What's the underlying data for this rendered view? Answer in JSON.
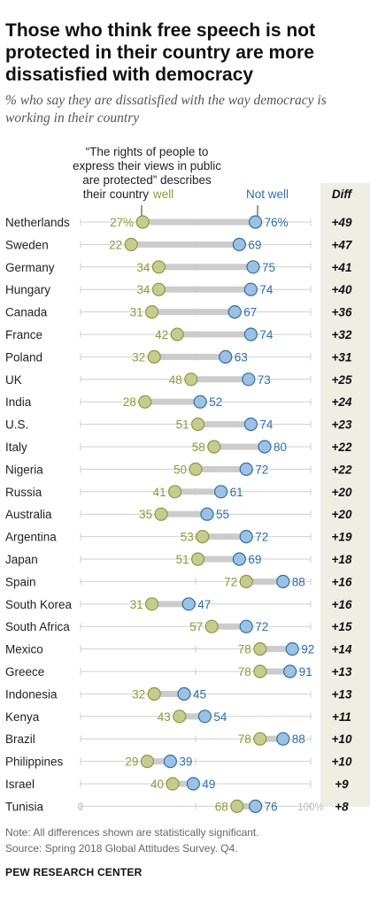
{
  "chart_data": {
    "type": "dot-plot",
    "title": "Those who think free speech is not protected in their country are more dissatisfied with democracy",
    "subtitle": "% who say they are dissatisfied with the way democracy is working in their country",
    "legend_caption": "“The rights of people to express their views in public are protected” describes their country",
    "series": [
      {
        "name": "well",
        "color": "#8c9a3c",
        "fill": "#c5cc92"
      },
      {
        "name": "Not well",
        "color": "#2f6fa6",
        "fill": "#9dc0e3"
      }
    ],
    "diff_header": "Diff",
    "xlim": [
      0,
      100
    ],
    "x_tick_labels": [
      "0",
      "100%"
    ],
    "rows": [
      {
        "country": "Netherlands",
        "well": 27,
        "well_label": "27%",
        "not_well": 76,
        "not_well_label": "76%",
        "diff": "+49"
      },
      {
        "country": "Sweden",
        "well": 22,
        "well_label": "22",
        "not_well": 69,
        "not_well_label": "69",
        "diff": "+47"
      },
      {
        "country": "Germany",
        "well": 34,
        "well_label": "34",
        "not_well": 75,
        "not_well_label": "75",
        "diff": "+41"
      },
      {
        "country": "Hungary",
        "well": 34,
        "well_label": "34",
        "not_well": 74,
        "not_well_label": "74",
        "diff": "+40"
      },
      {
        "country": "Canada",
        "well": 31,
        "well_label": "31",
        "not_well": 67,
        "not_well_label": "67",
        "diff": "+36"
      },
      {
        "country": "France",
        "well": 42,
        "well_label": "42",
        "not_well": 74,
        "not_well_label": "74",
        "diff": "+32"
      },
      {
        "country": "Poland",
        "well": 32,
        "well_label": "32",
        "not_well": 63,
        "not_well_label": "63",
        "diff": "+31"
      },
      {
        "country": "UK",
        "well": 48,
        "well_label": "48",
        "not_well": 73,
        "not_well_label": "73",
        "diff": "+25"
      },
      {
        "country": "India",
        "well": 28,
        "well_label": "28",
        "not_well": 52,
        "not_well_label": "52",
        "diff": "+24"
      },
      {
        "country": "U.S.",
        "well": 51,
        "well_label": "51",
        "not_well": 74,
        "not_well_label": "74",
        "diff": "+23"
      },
      {
        "country": "Italy",
        "well": 58,
        "well_label": "58",
        "not_well": 80,
        "not_well_label": "80",
        "diff": "+22"
      },
      {
        "country": "Nigeria",
        "well": 50,
        "well_label": "50",
        "not_well": 72,
        "not_well_label": "72",
        "diff": "+22"
      },
      {
        "country": "Russia",
        "well": 41,
        "well_label": "41",
        "not_well": 61,
        "not_well_label": "61",
        "diff": "+20"
      },
      {
        "country": "Australia",
        "well": 35,
        "well_label": "35",
        "not_well": 55,
        "not_well_label": "55",
        "diff": "+20"
      },
      {
        "country": "Argentina",
        "well": 53,
        "well_label": "53",
        "not_well": 72,
        "not_well_label": "72",
        "diff": "+19"
      },
      {
        "country": "Japan",
        "well": 51,
        "well_label": "51",
        "not_well": 69,
        "not_well_label": "69",
        "diff": "+18"
      },
      {
        "country": "Spain",
        "well": 72,
        "well_label": "72",
        "not_well": 88,
        "not_well_label": "88",
        "diff": "+16"
      },
      {
        "country": "South Korea",
        "well": 31,
        "well_label": "31",
        "not_well": 47,
        "not_well_label": "47",
        "diff": "+16"
      },
      {
        "country": "South Africa",
        "well": 57,
        "well_label": "57",
        "not_well": 72,
        "not_well_label": "72",
        "diff": "+15"
      },
      {
        "country": "Mexico",
        "well": 78,
        "well_label": "78",
        "not_well": 92,
        "not_well_label": "92",
        "diff": "+14"
      },
      {
        "country": "Greece",
        "well": 78,
        "well_label": "78",
        "not_well": 91,
        "not_well_label": "91",
        "diff": "+13"
      },
      {
        "country": "Indonesia",
        "well": 32,
        "well_label": "32",
        "not_well": 45,
        "not_well_label": "45",
        "diff": "+13"
      },
      {
        "country": "Kenya",
        "well": 43,
        "well_label": "43",
        "not_well": 54,
        "not_well_label": "54",
        "diff": "+11"
      },
      {
        "country": "Brazil",
        "well": 78,
        "well_label": "78",
        "not_well": 88,
        "not_well_label": "88",
        "diff": "+10"
      },
      {
        "country": "Philippines",
        "well": 29,
        "well_label": "29",
        "not_well": 39,
        "not_well_label": "39",
        "diff": "+10"
      },
      {
        "country": "Israel",
        "well": 40,
        "well_label": "40",
        "not_well": 49,
        "not_well_label": "49",
        "diff": "+9"
      },
      {
        "country": "Tunisia",
        "well": 68,
        "well_label": "68",
        "not_well": 76,
        "not_well_label": "76",
        "diff": "+8"
      }
    ]
  },
  "notes": {
    "note": "Note: All differences shown are statistically significant.",
    "source": "Source: Spring 2018 Global Attitudes Survey. Q4."
  },
  "brand": "PEW RESEARCH CENTER"
}
